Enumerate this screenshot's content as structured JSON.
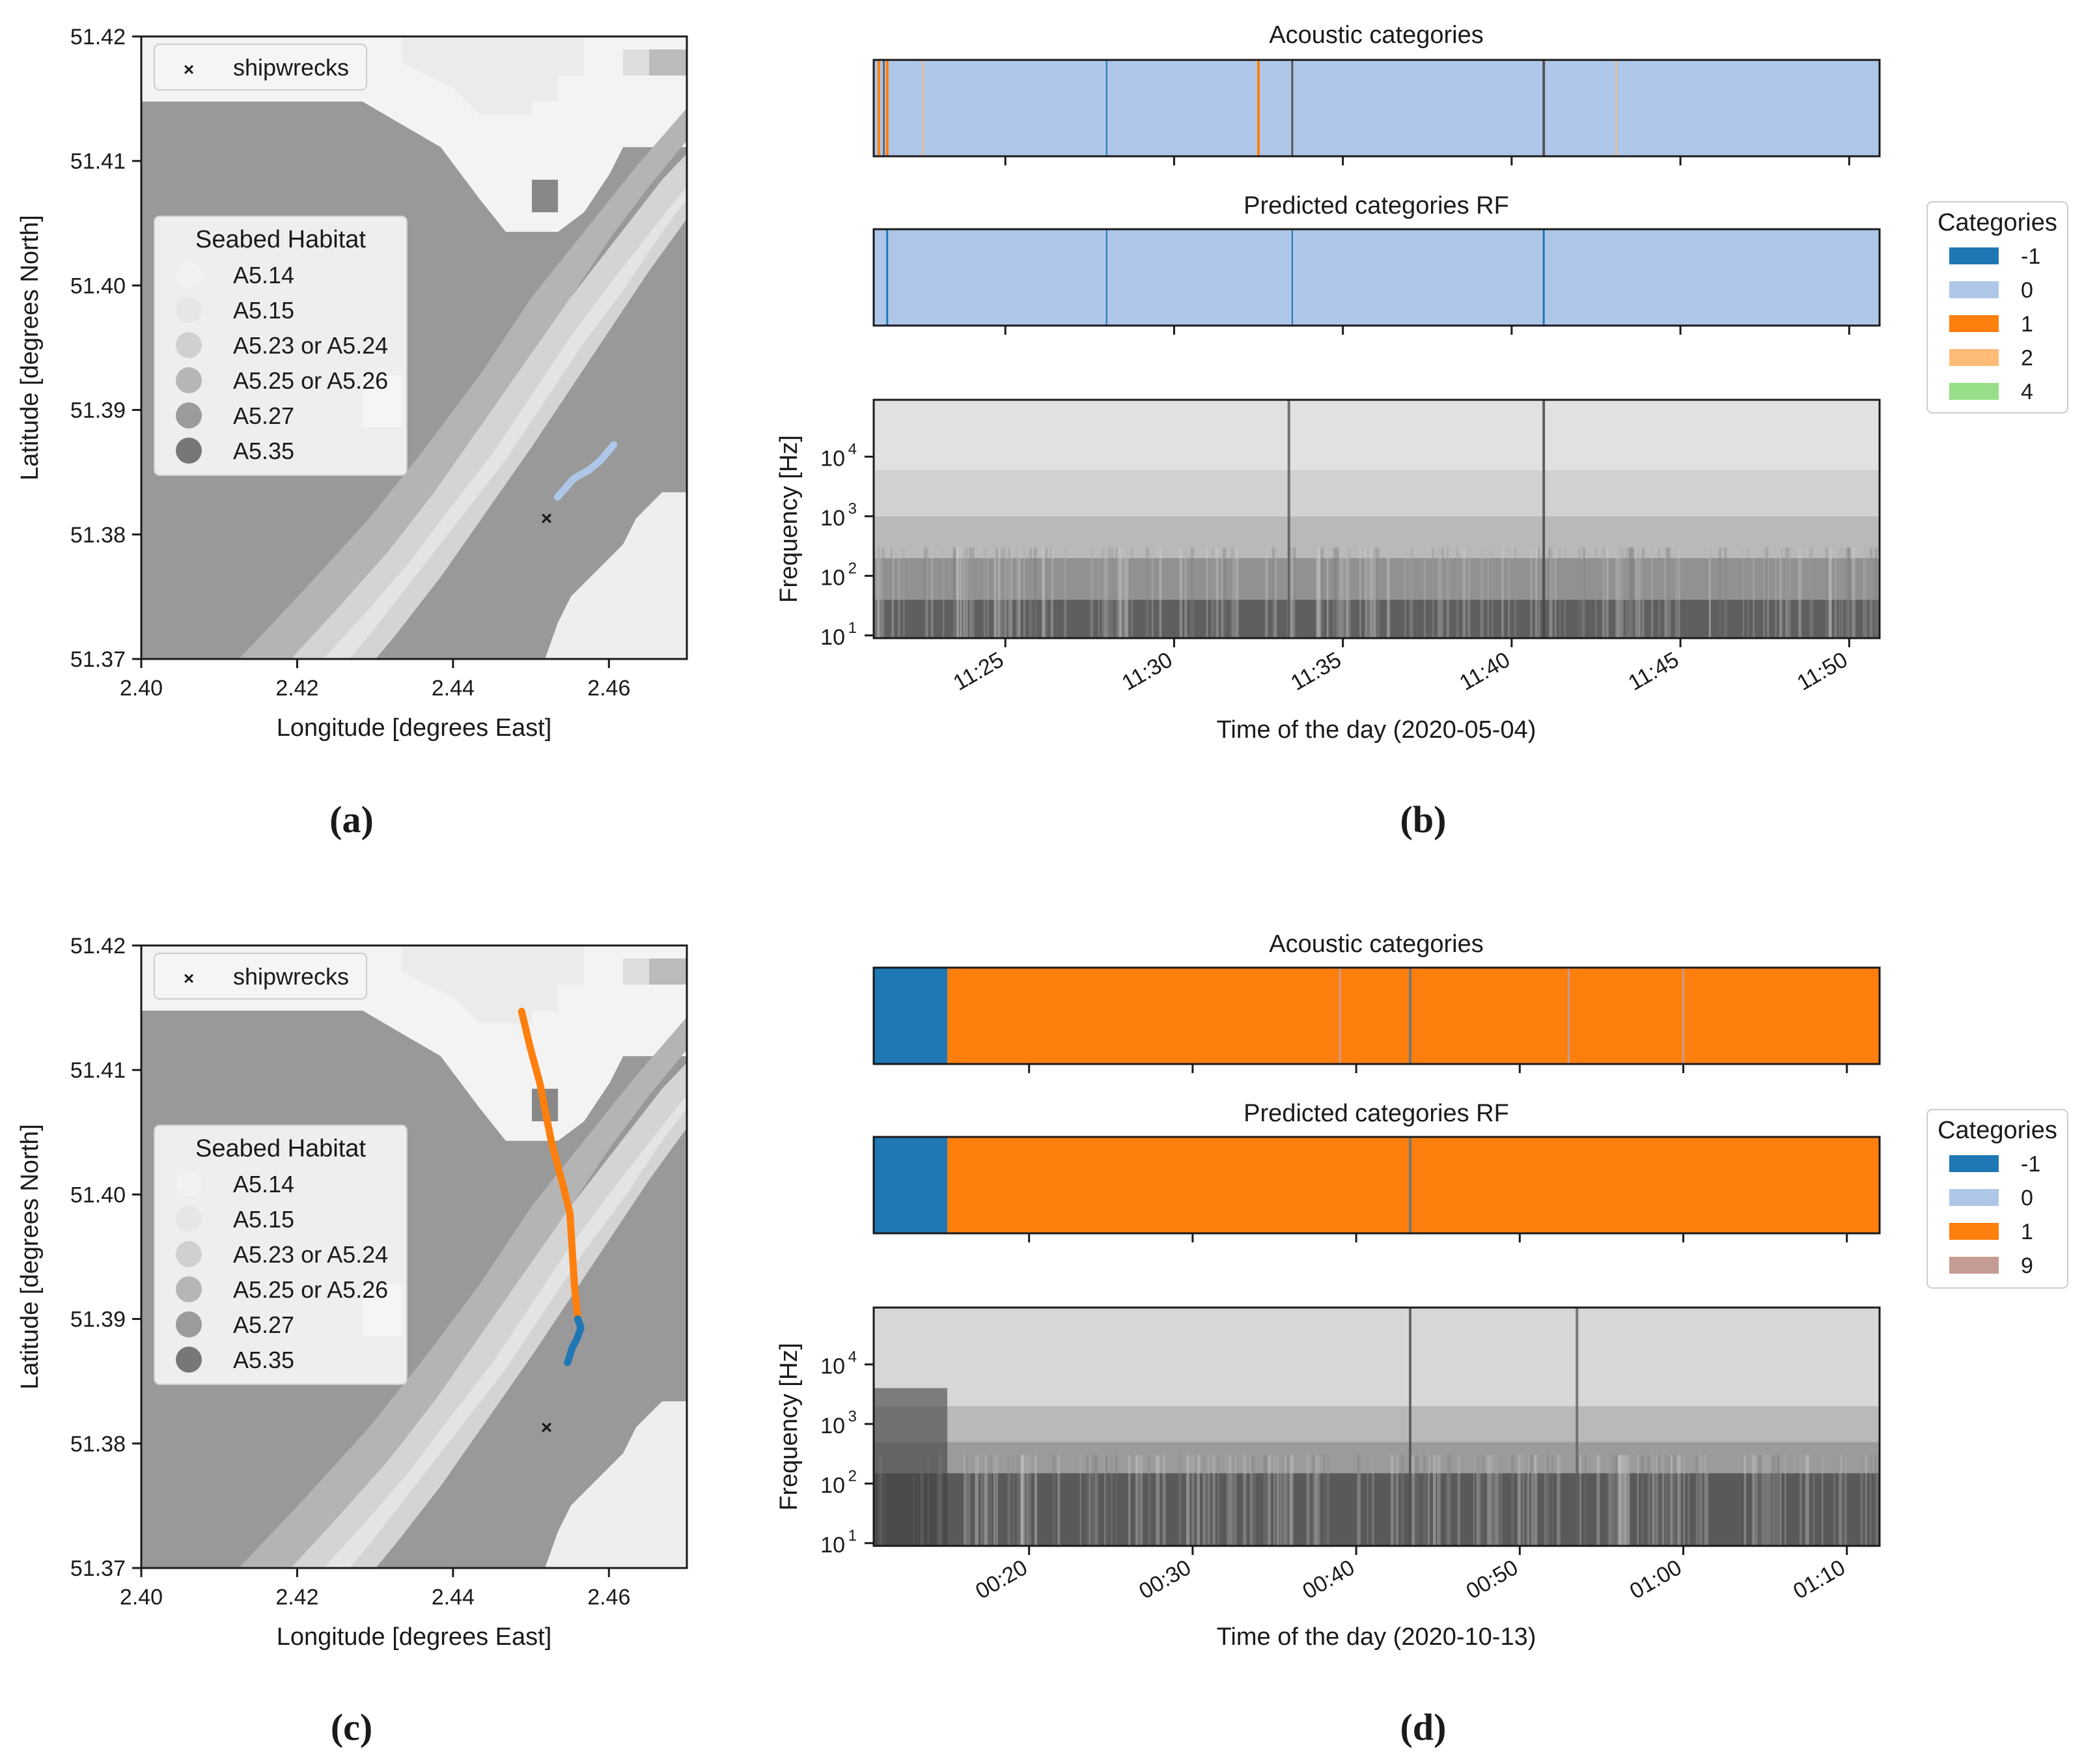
{
  "figure": {
    "panel_labels": [
      "(a)",
      "(b)",
      "(c)",
      "(d)"
    ]
  },
  "chart_data": [
    {
      "panel": "a",
      "type": "scatter",
      "title": "",
      "xlabel": "Longitude [degrees East]",
      "ylabel": "Latitude [degrees North]",
      "xlim": [
        2.4,
        2.47
      ],
      "ylim": [
        51.37,
        51.42
      ],
      "xticks": [
        2.4,
        2.42,
        2.44,
        2.46
      ],
      "xtick_labels": [
        "2.40",
        "2.42",
        "2.44",
        "2.46"
      ],
      "yticks": [
        51.37,
        51.38,
        51.39,
        51.4,
        51.41,
        51.42
      ],
      "ytick_labels": [
        "51.37",
        "51.38",
        "51.39",
        "51.40",
        "51.41",
        "51.42"
      ],
      "shipwreck_legend": "shipwrecks",
      "shipwrecks": [
        {
          "x": 2.452,
          "y": 51.3813
        }
      ],
      "habitat_legend_title": "Seabed Habitat",
      "habitat_legend": [
        {
          "label": "A5.14",
          "color": "#f2f2f2"
        },
        {
          "label": "A5.15",
          "color": "#e6e6e6"
        },
        {
          "label": "A5.23 or A5.24",
          "color": "#d0d0d0"
        },
        {
          "label": "A5.25 or A5.26",
          "color": "#b6b6b6"
        },
        {
          "label": "A5.27",
          "color": "#9b9b9b"
        },
        {
          "label": "A5.35",
          "color": "#777777"
        }
      ],
      "track_colors": {
        "-1": "#1f77b4",
        "0": "#aec7e8",
        "1": "#ff7f0e"
      },
      "track_segments": [
        {
          "category": "0",
          "points": [
            [
              2.4534,
              51.383
            ],
            [
              2.4555,
              51.3845
            ],
            [
              2.4575,
              51.3852
            ],
            [
              2.459,
              51.386
            ],
            [
              2.4606,
              51.3872
            ]
          ]
        }
      ]
    },
    {
      "panel": "c",
      "type": "scatter",
      "title": "",
      "xlabel": "Longitude [degrees East]",
      "ylabel": "Latitude [degrees North]",
      "xlim": [
        2.4,
        2.47
      ],
      "ylim": [
        51.37,
        51.42
      ],
      "xticks": [
        2.4,
        2.42,
        2.44,
        2.46
      ],
      "xtick_labels": [
        "2.40",
        "2.42",
        "2.44",
        "2.46"
      ],
      "yticks": [
        51.37,
        51.38,
        51.39,
        51.4,
        51.41,
        51.42
      ],
      "ytick_labels": [
        "51.37",
        "51.38",
        "51.39",
        "51.40",
        "51.41",
        "51.42"
      ],
      "shipwreck_legend": "shipwrecks",
      "shipwrecks": [
        {
          "x": 2.452,
          "y": 51.3813
        }
      ],
      "habitat_legend_title": "Seabed Habitat",
      "habitat_legend": [
        {
          "label": "A5.14",
          "color": "#f2f2f2"
        },
        {
          "label": "A5.15",
          "color": "#e6e6e6"
        },
        {
          "label": "A5.23 or A5.24",
          "color": "#d0d0d0"
        },
        {
          "label": "A5.25 or A5.26",
          "color": "#b6b6b6"
        },
        {
          "label": "A5.27",
          "color": "#9b9b9b"
        },
        {
          "label": "A5.35",
          "color": "#777777"
        }
      ],
      "track_colors": {
        "-1": "#1f77b4",
        "0": "#aec7e8",
        "1": "#ff7f0e"
      },
      "track_segments": [
        {
          "category": "1",
          "points": [
            [
              2.4488,
              51.4147
            ],
            [
              2.4499,
              51.4118
            ],
            [
              2.4512,
              51.4088
            ],
            [
              2.4518,
              51.4068
            ],
            [
              2.4527,
              51.404
            ],
            [
              2.454,
              51.401
            ],
            [
              2.455,
              51.3985
            ],
            [
              2.4553,
              51.3955
            ],
            [
              2.4556,
              51.3925
            ],
            [
              2.456,
              51.39
            ]
          ]
        },
        {
          "category": "-1",
          "points": [
            [
              2.456,
              51.39
            ],
            [
              2.4564,
              51.3893
            ],
            [
              2.4559,
              51.3884
            ],
            [
              2.4553,
              51.3877
            ],
            [
              2.4547,
              51.3865
            ]
          ]
        }
      ]
    },
    {
      "panel": "b",
      "type": "heatmap",
      "top_title": "Acoustic categories",
      "mid_title": "Predicted categories RF",
      "xlabel": "Time of the day (2020-05-04)",
      "ylabel": "Frequency [Hz]",
      "time_range_min": [
        681.1,
        710.9
      ],
      "time_ticks_min": [
        685,
        690,
        695,
        700,
        705,
        710
      ],
      "time_tick_labels": [
        "11:25",
        "11:30",
        "11:35",
        "11:40",
        "11:45",
        "11:50"
      ],
      "freq_ticks": [
        10,
        100,
        1000,
        10000
      ],
      "freq_tick_labels": [
        "10",
        "10",
        "10",
        "10"
      ],
      "freq_tick_exps": [
        "1",
        "2",
        "3",
        "4"
      ],
      "freq_range": [
        9,
        90000
      ],
      "legend_title": "Categories",
      "legend": [
        {
          "label": "-1",
          "color": "#1f77b4"
        },
        {
          "label": "0",
          "color": "#aec7e8"
        },
        {
          "label": "1",
          "color": "#ff7f0e"
        },
        {
          "label": "2",
          "color": "#ffbb78"
        },
        {
          "label": "4",
          "color": "#98df8a"
        }
      ],
      "acoustic_base": "0",
      "acoustic_lines": [
        {
          "t": 681.25,
          "color": "#ff7f0e",
          "w": 4
        },
        {
          "t": 681.4,
          "color": "#666666",
          "w": 3
        },
        {
          "t": 681.5,
          "color": "#ff7f0e",
          "w": 4
        },
        {
          "t": 682.55,
          "color": "#ffbb78",
          "w": 2
        },
        {
          "t": 688.0,
          "color": "#1f77b4",
          "w": 2
        },
        {
          "t": 692.5,
          "color": "#ff7f0e",
          "w": 4
        },
        {
          "t": 693.5,
          "color": "#555555",
          "w": 3
        },
        {
          "t": 700.95,
          "color": "#555555",
          "w": 4
        },
        {
          "t": 703.1,
          "color": "#ffbb78",
          "w": 2
        }
      ],
      "predicted_base": "0",
      "predicted_lines": [
        {
          "t": 681.5,
          "color": "#1f77b4",
          "w": 3
        },
        {
          "t": 688.0,
          "color": "#1f77b4",
          "w": 2
        },
        {
          "t": 693.5,
          "color": "#1f77b4",
          "w": 2
        },
        {
          "t": 700.95,
          "color": "#1f77b4",
          "w": 3
        }
      ],
      "spectrogram": {
        "bands": [
          {
            "f0": 9,
            "f1": 40,
            "level": 0.75
          },
          {
            "f0": 40,
            "f1": 200,
            "level": 0.5
          },
          {
            "f0": 200,
            "f1": 1000,
            "level": 0.3
          },
          {
            "f0": 1000,
            "f1": 6000,
            "level": 0.18
          },
          {
            "f0": 6000,
            "f1": 90000,
            "level": 0.1
          }
        ],
        "events": [
          {
            "t": 693.4,
            "level": 0.8
          },
          {
            "t": 700.95,
            "level": 0.9
          }
        ]
      }
    },
    {
      "panel": "d",
      "type": "heatmap",
      "top_title": "Acoustic categories",
      "mid_title": "Predicted categories RF",
      "xlabel": "Time of the day (2020-10-13)",
      "ylabel": "Frequency [Hz]",
      "time_range_min": [
        10.5,
        72
      ],
      "time_ticks_min": [
        20,
        30,
        40,
        50,
        60,
        70
      ],
      "time_tick_labels": [
        "00:20",
        "00:30",
        "00:40",
        "00:50",
        "01:00",
        "01:10"
      ],
      "freq_ticks": [
        10,
        100,
        1000,
        10000
      ],
      "freq_tick_labels": [
        "10",
        "10",
        "10",
        "10"
      ],
      "freq_tick_exps": [
        "1",
        "2",
        "3",
        "4"
      ],
      "freq_range": [
        9,
        90000
      ],
      "legend_title": "Categories",
      "legend": [
        {
          "label": "-1",
          "color": "#1f77b4"
        },
        {
          "label": "0",
          "color": "#aec7e8"
        },
        {
          "label": "1",
          "color": "#ff7f0e"
        },
        {
          "label": "9",
          "color": "#c49c94"
        }
      ],
      "acoustic_segments": [
        {
          "t0": 10.5,
          "t1": 15.0,
          "color": "#1f77b4"
        },
        {
          "t0": 15.0,
          "t1": 72,
          "color": "#ff7f0e"
        }
      ],
      "acoustic_lines": [
        {
          "t": 39.0,
          "color": "#c49c94",
          "w": 3
        },
        {
          "t": 43.3,
          "color": "#777777",
          "w": 4
        },
        {
          "t": 53.0,
          "color": "#c49c94",
          "w": 3
        },
        {
          "t": 60.0,
          "color": "#c49c94",
          "w": 3
        }
      ],
      "predicted_segments": [
        {
          "t0": 10.5,
          "t1": 15.0,
          "color": "#1f77b4"
        },
        {
          "t0": 15.0,
          "t1": 72,
          "color": "#ff7f0e"
        }
      ],
      "predicted_lines": [
        {
          "t": 43.3,
          "color": "#777777",
          "w": 4
        }
      ],
      "spectrogram": {
        "bands": [
          {
            "f0": 9,
            "f1": 150,
            "level": 0.78
          },
          {
            "f0": 150,
            "f1": 500,
            "level": 0.45
          },
          {
            "f0": 500,
            "f1": 2000,
            "level": 0.3
          },
          {
            "f0": 2000,
            "f1": 90000,
            "level": 0.15
          }
        ],
        "events": [
          {
            "t": 43.3,
            "level": 0.85
          },
          {
            "t": 53.5,
            "level": 0.75
          }
        ],
        "dark_start": {
          "t0": 10.5,
          "t1": 15.0,
          "level": 0.9
        }
      }
    }
  ]
}
